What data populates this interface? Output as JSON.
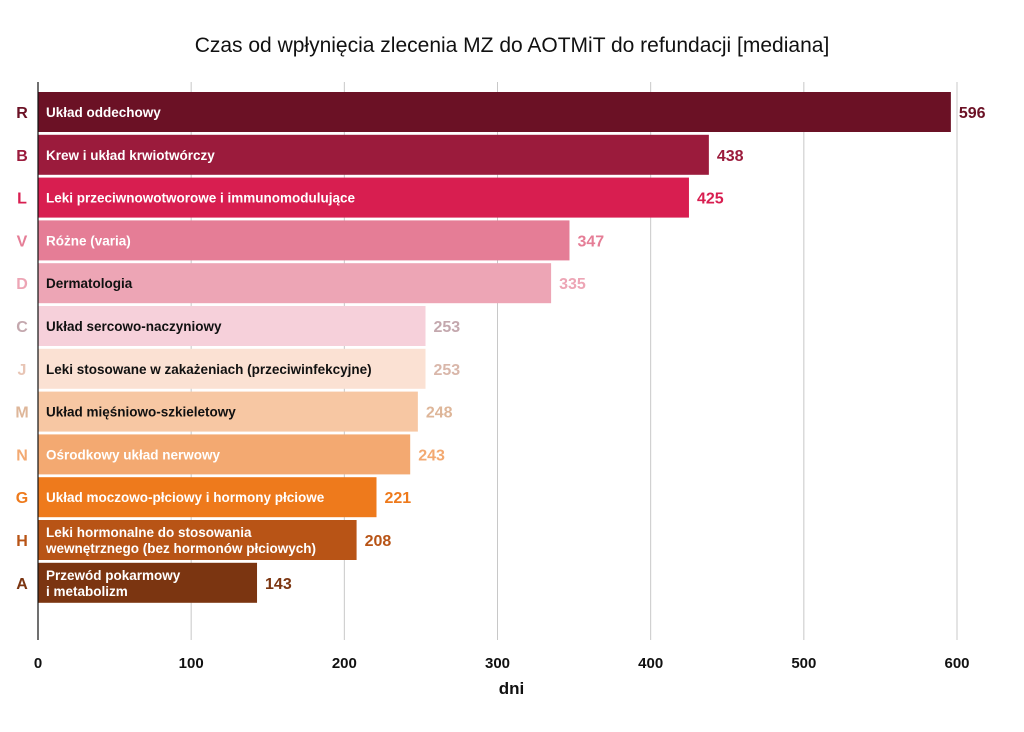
{
  "chart_data": {
    "type": "bar",
    "orientation": "horizontal",
    "title": "Czas od wpłynięcia zlecenia MZ do AOTMiT do refundacji [mediana]",
    "xlabel": "dni",
    "ylabel": "",
    "xlim": [
      0,
      600
    ],
    "xticks": [
      "0",
      "100",
      "200",
      "300",
      "400",
      "500",
      "600"
    ],
    "grid": true,
    "codes": [
      "R",
      "B",
      "L",
      "V",
      "D",
      "C",
      "J",
      "M",
      "N",
      "G",
      "H",
      "A"
    ],
    "categories": [
      [
        "Układ oddechowy"
      ],
      [
        "Krew i układ krwiotwórczy"
      ],
      [
        "Leki przeciwnowotworowe i immunomodulujące"
      ],
      [
        "Różne (varia)"
      ],
      [
        "Dermatologia"
      ],
      [
        "Układ sercowo-naczyniowy"
      ],
      [
        "Leki stosowane w zakażeniach (przeciwinfekcyjne)"
      ],
      [
        "Układ mięśniowo-szkieletowy"
      ],
      [
        "Ośrodkowy układ nerwowy"
      ],
      [
        "Układ moczowo-płciowy i hormony płciowe"
      ],
      [
        "Leki hormonalne do stosowania",
        "wewnętrznego (bez hormonów płciowych)"
      ],
      [
        "Przewód pokarmowy",
        "i metabolizm"
      ]
    ],
    "values": [
      596,
      438,
      425,
      347,
      335,
      253,
      253,
      248,
      243,
      221,
      208,
      143
    ],
    "bar_colors": [
      "#6b1125",
      "#9b1b3c",
      "#d81e50",
      "#e57d96",
      "#eda5b5",
      "#f6d0da",
      "#fbe1d3",
      "#f7c7a3",
      "#f3a971",
      "#ee7a1c",
      "#b85416",
      "#7b3511"
    ],
    "bar_text_colors": [
      "#ffffff",
      "#ffffff",
      "#ffffff",
      "#ffffff",
      "#111111",
      "#111111",
      "#111111",
      "#111111",
      "#ffffff",
      "#ffffff",
      "#ffffff",
      "#ffffff"
    ],
    "code_colors": [
      "#6b1125",
      "#9b1b3c",
      "#d81e50",
      "#e57d96",
      "#eda5b5",
      "#c4a8ae",
      "#e8c5b5",
      "#deb699",
      "#f3a971",
      "#ee7a1c",
      "#b85416",
      "#7b3511"
    ],
    "value_colors": [
      "#6b1125",
      "#9b1b3c",
      "#d81e50",
      "#e57d96",
      "#eda5b5",
      "#c4a8ae",
      "#d9b7aa",
      "#deb699",
      "#f3a971",
      "#ee7a1c",
      "#b85416",
      "#7b3511"
    ]
  }
}
